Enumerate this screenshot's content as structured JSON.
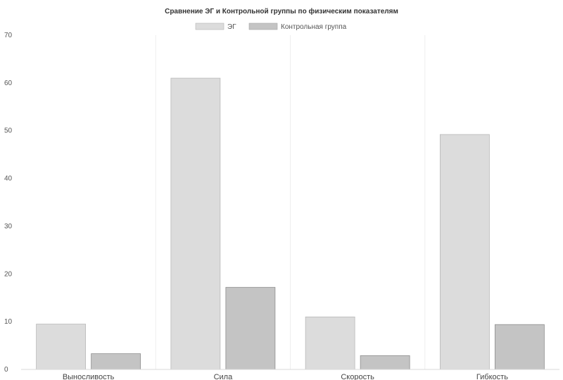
{
  "chart_data": {
    "type": "bar",
    "title": "Сравнение ЭГ и Контрольной группы по физическим показателям",
    "categories": [
      "Выносливость",
      "Сила",
      "Скорость",
      "Гибкость"
    ],
    "series": [
      {
        "name": "ЭГ",
        "values": [
          9.5,
          61,
          11,
          49.2
        ],
        "color": "#dcdcdc"
      },
      {
        "name": "Контрольная группа",
        "values": [
          3.3,
          17.2,
          2.9,
          9.4
        ],
        "color": "#c4c4c4"
      }
    ],
    "xlabel": "",
    "ylabel": "",
    "ylim": [
      0,
      70
    ],
    "yticks": [
      "0",
      "10",
      "20",
      "30",
      "40",
      "50",
      "60",
      "70"
    ],
    "grid": false,
    "legend": "top-center"
  }
}
